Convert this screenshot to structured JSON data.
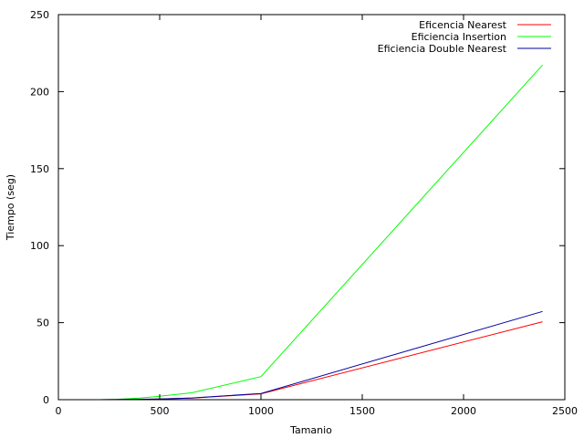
{
  "chart_data": {
    "type": "line",
    "title": "",
    "xlabel": "Tamanio",
    "ylabel": "Tiempo (seg)",
    "xlim": [
      0,
      2500
    ],
    "ylim": [
      0,
      250
    ],
    "xticks": [
      0,
      500,
      1000,
      1500,
      2000,
      2500
    ],
    "yticks": [
      0,
      50,
      100,
      150,
      200,
      250
    ],
    "grid": false,
    "legend_position": "top-right",
    "series": [
      {
        "name": "Eficencia Nearest",
        "color": "#ff0000",
        "x": [
          0,
          100,
          200,
          300,
          400,
          500,
          660,
          1000,
          2390
        ],
        "y": [
          0,
          0,
          0,
          0.1,
          0.2,
          0.4,
          1.0,
          3.8,
          50.6
        ]
      },
      {
        "name": "Eficiencia Insertion",
        "color": "#00ff00",
        "x": [
          0,
          100,
          200,
          300,
          400,
          500,
          660,
          1000,
          2390
        ],
        "y": [
          0,
          0,
          0,
          0.3,
          1.0,
          2.2,
          4.5,
          15.0,
          217.3
        ]
      },
      {
        "name": "Eficiencia Double Nearest",
        "color": "#0000a0",
        "x": [
          0,
          100,
          200,
          300,
          400,
          500,
          660,
          1000,
          2390
        ],
        "y": [
          0,
          0,
          0,
          0.1,
          0.3,
          0.5,
          1.1,
          4.0,
          57.3
        ]
      }
    ]
  }
}
